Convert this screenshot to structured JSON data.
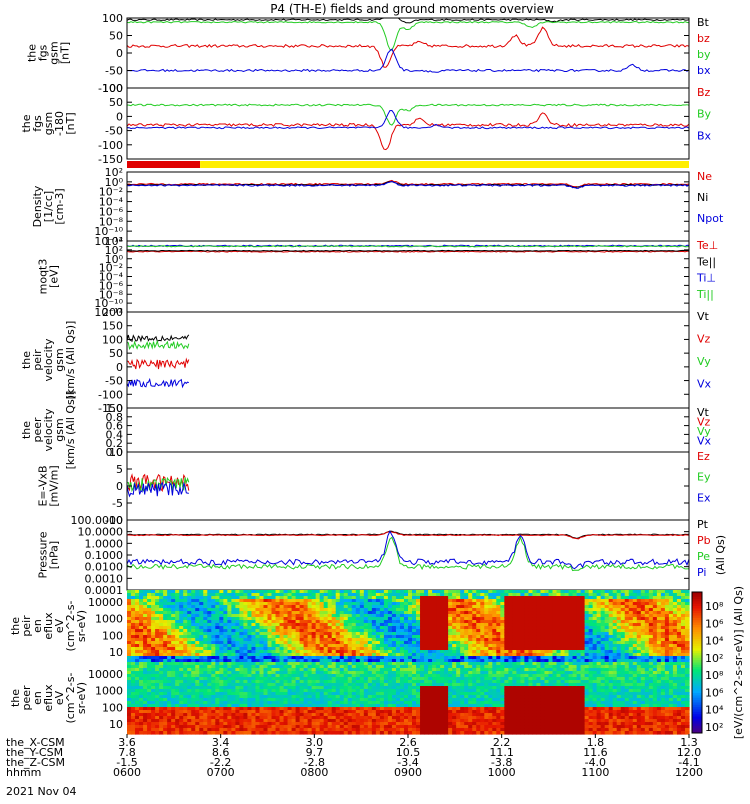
{
  "title": "P4 (TH-E) fields and ground moments overview",
  "date_label": "2021 Nov 04",
  "chart_data": [
    {
      "id": "fgs_gsm",
      "type": "line",
      "ylabel": [
        "the",
        "fgs",
        "gsm",
        "[nT]"
      ],
      "ylim": [
        -100,
        100
      ],
      "yticks": [
        "100",
        "50",
        "0",
        "-50",
        "-100"
      ],
      "series": [
        {
          "name": "Bt",
          "color": "#000000",
          "base": 95,
          "noise": 2,
          "event": [
            [
              0.47,
              20
            ],
            [
              0.5,
              -10
            ],
            [
              0.76,
              -5
            ]
          ]
        },
        {
          "name": "bz",
          "color": "#e00000",
          "base": 20,
          "noise": 4,
          "event": [
            [
              0.46,
              -60
            ],
            [
              0.52,
              10
            ],
            [
              0.69,
              30
            ],
            [
              0.74,
              50
            ]
          ]
        },
        {
          "name": "by",
          "color": "#22cc22",
          "base": 88,
          "noise": 2,
          "event": [
            [
              0.47,
              -80
            ],
            [
              0.5,
              -20
            ],
            [
              0.72,
              -15
            ]
          ]
        },
        {
          "name": "bx",
          "color": "#0000dd",
          "base": -50,
          "noise": 3,
          "event": [
            [
              0.47,
              60
            ],
            [
              0.55,
              -5
            ],
            [
              0.9,
              15
            ]
          ]
        }
      ],
      "legend": [
        "Bt",
        "bz",
        "by",
        "bx"
      ]
    },
    {
      "id": "fgs_gsm_rot",
      "type": "line",
      "ylabel": [
        "the",
        "fgs",
        "gsm",
        "-180",
        "[nT]"
      ],
      "ylim": [
        -150,
        100
      ],
      "yticks": [
        "100",
        "50",
        "0",
        "-50",
        "-100",
        "-150"
      ],
      "series": [
        {
          "name": "Bz",
          "color": "#e00000",
          "base": -30,
          "noise": 5,
          "event": [
            [
              0.46,
              -90
            ],
            [
              0.52,
              20
            ],
            [
              0.74,
              40
            ]
          ]
        },
        {
          "name": "By",
          "color": "#22cc22",
          "base": 40,
          "noise": 3,
          "event": [
            [
              0.47,
              -70
            ],
            [
              0.5,
              -20
            ]
          ]
        },
        {
          "name": "Bx",
          "color": "#0000dd",
          "base": -40,
          "noise": 3,
          "event": [
            [
              0.47,
              60
            ],
            [
              0.55,
              10
            ]
          ]
        }
      ],
      "legend": [
        "Bz",
        "By",
        "Bx"
      ]
    },
    {
      "id": "density",
      "type": "line",
      "log": true,
      "ylabel": [
        "Density",
        "[1/cc]",
        "[cm-3]"
      ],
      "ylim": [
        -6,
        2
      ],
      "yticks": [
        "10²",
        "10⁰",
        "10⁻²",
        "10⁻⁴",
        "10⁻⁶",
        "10⁻⁸",
        "10⁻¹⁰",
        "10⁻¹²"
      ],
      "series": [
        {
          "name": "Ne",
          "color": "#e00000",
          "base": 0.6,
          "noise": 0.08,
          "event": [
            [
              0.47,
              0.4
            ],
            [
              0.8,
              -0.3
            ]
          ]
        },
        {
          "name": "Ni",
          "color": "#000000",
          "base": 0.5,
          "noise": 0.06,
          "event": [
            [
              0.47,
              0.4
            ],
            [
              0.8,
              -0.3
            ]
          ]
        },
        {
          "name": "Npot",
          "color": "#0000dd",
          "base": 0.45,
          "noise": 0.1,
          "event": [
            [
              0.47,
              0.4
            ],
            [
              0.8,
              -0.3
            ]
          ]
        }
      ],
      "legend": [
        "Ne",
        "Ni",
        "Npot"
      ]
    },
    {
      "id": "moqt3",
      "type": "line",
      "log": true,
      "ylabel": [
        "moqt3",
        "[eV]"
      ],
      "ylim": [
        -12,
        4
      ],
      "yticks": [
        "10⁴",
        "10²",
        "10⁰",
        "10⁻²",
        "10⁻⁴",
        "10⁻⁶",
        "10⁻⁸",
        "10⁻¹⁰",
        "10⁻¹²"
      ],
      "series": [
        {
          "name": "Te⊥",
          "color": "#e00000",
          "base": 1.6,
          "noise": 0.1
        },
        {
          "name": "Te||",
          "color": "#000000",
          "base": 1.8,
          "noise": 0.08
        },
        {
          "name": "Ti⊥",
          "color": "#0000dd",
          "base": 2.9,
          "noise": 0.15
        },
        {
          "name": "Ti||",
          "color": "#22cc22",
          "base": 2.8,
          "noise": 0.12
        }
      ],
      "legend": [
        "Te⊥",
        "Te||",
        "Ti⊥",
        "Ti||"
      ]
    },
    {
      "id": "peir_velocity",
      "type": "line",
      "ylabel": [
        "the",
        "peir",
        "velocity",
        "gsm",
        "[km/s (All Qs)]"
      ],
      "ylim": [
        -150,
        200
      ],
      "yticks": [
        "200",
        "150",
        "100",
        "50",
        "0",
        "-50",
        "-100",
        "-150"
      ],
      "xrange": [
        0,
        0.11
      ],
      "series": [
        {
          "name": "Vt",
          "color": "#000000",
          "base": 105,
          "noise": 12
        },
        {
          "name": "Vz",
          "color": "#e00000",
          "base": 10,
          "noise": 18
        },
        {
          "name": "Vy",
          "color": "#22cc22",
          "base": 80,
          "noise": 14
        },
        {
          "name": "Vx",
          "color": "#0000dd",
          "base": -60,
          "noise": 14
        }
      ],
      "legend": [
        "Vt",
        "Vz",
        "Vy",
        "Vx"
      ]
    },
    {
      "id": "peer_velocity",
      "type": "line",
      "ylabel": [
        "the",
        "peer",
        "velocity",
        "gsm",
        "[km/s (All Qs)]"
      ],
      "ylim": [
        0,
        1
      ],
      "yticks": [
        "1.0",
        "0.8",
        "0.6",
        "0.4",
        "0.2",
        "0.0"
      ],
      "series": [],
      "legend": [
        "Vt",
        "Vz",
        "Vy",
        "Vx"
      ],
      "legend_colors": [
        "#000000",
        "#e00000",
        "#22cc22",
        "#0000dd"
      ]
    },
    {
      "id": "efield",
      "type": "line",
      "ylabel": [
        "E=-VxB",
        "[mV/m]"
      ],
      "ylim": [
        -10,
        10
      ],
      "yticks": [
        "10",
        "5",
        "0",
        "-5",
        "-10"
      ],
      "xrange": [
        0,
        0.11
      ],
      "series": [
        {
          "name": "Ez",
          "color": "#e00000",
          "base": 1,
          "noise": 2.5
        },
        {
          "name": "Ey",
          "color": "#22cc22",
          "base": 0.5,
          "noise": 2
        },
        {
          "name": "Ex",
          "color": "#0000dd",
          "base": -1,
          "noise": 2
        }
      ],
      "legend": [
        "Ez",
        "Ey",
        "Ex"
      ]
    },
    {
      "id": "pressure",
      "type": "line",
      "log": true,
      "ylabel": [
        "Pressure",
        "[nPa]"
      ],
      "ylim": [
        -4,
        2
      ],
      "yticks": [
        "100.0000",
        "10.0000",
        "1.0000",
        "0.1000",
        "0.0100",
        "0.0010",
        "0.0001"
      ],
      "series": [
        {
          "name": "Pt",
          "color": "#000000",
          "base": 0.75,
          "noise": 0.04,
          "event": [
            [
              0.47,
              0.3
            ],
            [
              0.8,
              -0.3
            ]
          ]
        },
        {
          "name": "Pb",
          "color": "#e00000",
          "base": 0.7,
          "noise": 0.04,
          "event": [
            [
              0.47,
              0.3
            ],
            [
              0.8,
              -0.3
            ]
          ]
        },
        {
          "name": "Pe",
          "color": "#22cc22",
          "base": -2.0,
          "noise": 0.2,
          "event": [
            [
              0.47,
              2.5
            ],
            [
              0.7,
              2.4
            ],
            [
              0.8,
              -0.3
            ]
          ]
        },
        {
          "name": "Pi",
          "color": "#0000dd",
          "base": -1.6,
          "noise": 0.25,
          "event": [
            [
              0.47,
              2.6
            ],
            [
              0.7,
              2.2
            ],
            [
              0.8,
              -0.5
            ]
          ]
        }
      ],
      "legend": [
        "Pt",
        "Pb",
        "Pe",
        "Pi"
      ],
      "legend_suffix": "(All Qs)"
    },
    {
      "id": "peir_spec",
      "type": "heatmap",
      "ylabel": [
        "the",
        "peir",
        "en",
        "eflux",
        "eV",
        "(cm^2-s-",
        "sr-eV)"
      ],
      "yticks": [
        "10000",
        "1000",
        "100",
        "10"
      ]
    },
    {
      "id": "peer_spec",
      "type": "heatmap",
      "ylabel": [
        "the",
        "peer",
        "en",
        "eflux",
        "eV",
        "(cm^2-s-",
        "sr-eV)"
      ],
      "yticks": [
        "10000",
        "1000",
        "100",
        "10"
      ]
    }
  ],
  "colorbar": {
    "label": "[eV/(cm^2-s-sr-eV)] (All Qs)",
    "ticks": [
      "10⁸",
      "10⁶",
      "10⁴",
      "10²",
      "10⁸",
      "10⁶",
      "10⁴",
      "10²"
    ]
  },
  "xaxis": {
    "rows": [
      {
        "label": "the_X-CSM",
        "values": [
          "3.6",
          "3.4",
          "3.0",
          "2.6",
          "2.2",
          "1.8",
          "1.3"
        ]
      },
      {
        "label": "the_Y-CSM",
        "values": [
          "7.8",
          "8.6",
          "9.7",
          "10.5",
          "11.1",
          "11.6",
          "12.0"
        ]
      },
      {
        "label": "the_Z-CSM",
        "values": [
          "-1.5",
          "-2.2",
          "-2.8",
          "-3.4",
          "-3.8",
          "-4.0",
          "-4.1"
        ]
      },
      {
        "label": "hhmm",
        "values": [
          "0600",
          "0700",
          "0800",
          "0900",
          "1000",
          "1100",
          "1200"
        ]
      }
    ]
  },
  "mode_bar": [
    {
      "color": "#e00000",
      "from": 0.0,
      "to": 0.13
    },
    {
      "color": "#ffee00",
      "from": 0.13,
      "to": 1.0
    }
  ]
}
